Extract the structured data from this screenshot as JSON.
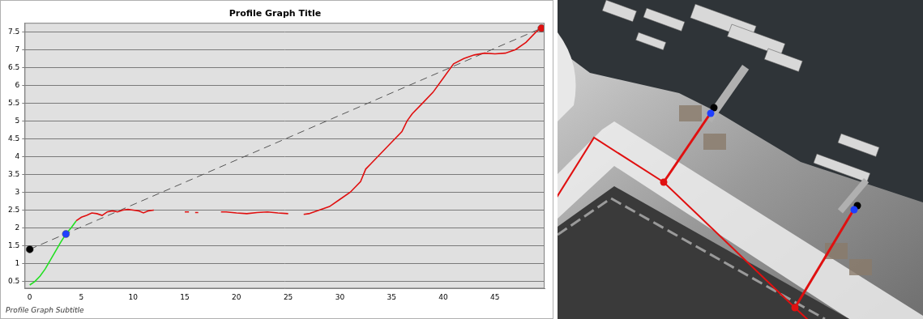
{
  "chart_data": {
    "type": "line",
    "title": "Profile Graph Title",
    "subtitle": "Profile Graph Subtitle",
    "xlim": [
      -0.5,
      49.8
    ],
    "xticks": [
      0,
      5,
      10,
      15,
      20,
      25,
      30,
      35,
      40,
      45
    ],
    "ylim": [
      0.3,
      7.75
    ],
    "yticks": [
      0.5,
      1,
      1.5,
      2,
      2.5,
      3,
      3.5,
      4,
      4.5,
      5,
      5.5,
      6,
      6.5,
      7,
      7.5
    ],
    "grid": "y",
    "series": [
      {
        "type": "line",
        "line_style": "dashed",
        "color": "#555555",
        "x": [
          0,
          49.5
        ],
        "values": [
          1.4,
          7.6
        ]
      },
      {
        "type": "line",
        "line_style": "solid",
        "color": "#22e022",
        "x": [
          0,
          0.5,
          1,
          1.5,
          2,
          2.5,
          3,
          3.5,
          4,
          4.5
        ],
        "values": [
          0.4,
          0.5,
          0.65,
          0.85,
          1.1,
          1.35,
          1.6,
          1.83,
          2.0,
          2.2
        ]
      },
      {
        "type": "line",
        "line_style": "solid",
        "color": "#e01010",
        "x": [
          4.5,
          5,
          5.5,
          6,
          6.5,
          7,
          7.5,
          8,
          8.5,
          9,
          9.5,
          10,
          10.5,
          11,
          11.5,
          12,
          13.5,
          15,
          15.4,
          15.7,
          16,
          16.3,
          17.5,
          18.5,
          19,
          20,
          21,
          22,
          23,
          24,
          25,
          25.8,
          26.5,
          27,
          28,
          29,
          30,
          31,
          32,
          32.5,
          33,
          34,
          35,
          36,
          36.5,
          37,
          38,
          39,
          40,
          41,
          42,
          43,
          44,
          45,
          46,
          47,
          48,
          49,
          49.5
        ],
        "values": [
          2.2,
          2.3,
          2.35,
          2.42,
          2.4,
          2.35,
          2.45,
          2.48,
          2.45,
          2.5,
          2.52,
          2.5,
          2.48,
          2.42,
          2.48,
          2.5,
          null,
          2.45,
          2.45,
          null,
          2.43,
          2.43,
          null,
          2.45,
          2.45,
          2.42,
          2.4,
          2.43,
          2.45,
          2.42,
          2.4,
          null,
          2.38,
          2.4,
          2.5,
          2.6,
          2.8,
          3.0,
          3.3,
          3.65,
          3.8,
          4.1,
          4.4,
          4.7,
          5.0,
          5.2,
          5.5,
          5.8,
          6.2,
          6.6,
          6.75,
          6.85,
          6.9,
          6.88,
          6.9,
          7.0,
          7.2,
          7.5,
          7.6
        ]
      },
      {
        "type": "scatter",
        "marker": "circle",
        "colors": [
          "#000000",
          "#2040ff",
          "#e01010"
        ],
        "x": [
          0,
          3.5,
          49.5
        ],
        "values": [
          1.4,
          1.83,
          7.6
        ]
      }
    ]
  }
}
